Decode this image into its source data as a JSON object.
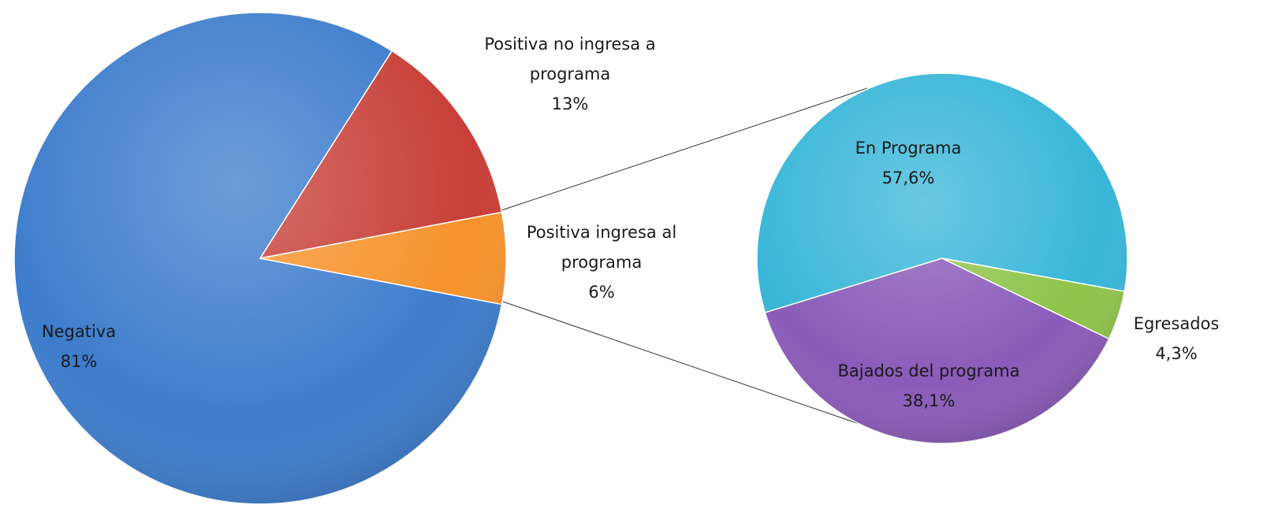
{
  "chart_data": [
    {
      "type": "pie",
      "categories": [
        "Negativa",
        "Positiva no ingresa a programa",
        "Positiva ingresa al programa"
      ],
      "values": [
        81,
        13,
        6
      ],
      "value_labels": [
        "81%",
        "13%",
        "6%"
      ],
      "colors": [
        "#3d7ccc",
        "#c73f38",
        "#f7922c"
      ]
    },
    {
      "type": "pie",
      "categories": [
        "En Programa",
        "Bajados del programa",
        "Egresados"
      ],
      "values": [
        57.6,
        38.1,
        4.3
      ],
      "value_labels": [
        "57,6%",
        "38,1%",
        "4,3%"
      ],
      "colors": [
        "#38b6d8",
        "#8a5bb9",
        "#8fc34a"
      ]
    }
  ]
}
